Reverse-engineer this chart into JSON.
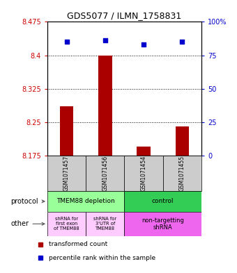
{
  "title": "GDS5077 / ILMN_1758831",
  "samples": [
    "GSM1071457",
    "GSM1071456",
    "GSM1071454",
    "GSM1071455"
  ],
  "bar_values": [
    8.285,
    8.4,
    8.195,
    8.24
  ],
  "bar_bottom": 8.175,
  "percentile_values": [
    85,
    86,
    83,
    85
  ],
  "ylim_left": [
    8.175,
    8.475
  ],
  "ylim_right": [
    0,
    100
  ],
  "yticks_left": [
    8.175,
    8.25,
    8.325,
    8.4,
    8.475
  ],
  "yticks_right": [
    0,
    25,
    50,
    75,
    100
  ],
  "ytick_labels_left": [
    "8.175",
    "8.25",
    "8.325",
    "8.4",
    "8.475"
  ],
  "ytick_labels_right": [
    "0",
    "25",
    "50",
    "75",
    "100%"
  ],
  "bar_color": "#aa0000",
  "dot_color": "#0000cc",
  "hline_values": [
    8.4,
    8.325,
    8.25
  ],
  "protocol_labels": [
    "TMEM88 depletion",
    "control"
  ],
  "protocol_color_left": "#99ff99",
  "protocol_color_right": "#33cc55",
  "other_labels": [
    "shRNA for\nfirst exon\nof TMEM88",
    "shRNA for\n3'UTR of\nTMEM88",
    "non-targetting\nshRNA"
  ],
  "other_color_left": "#ffccff",
  "other_color_right": "#ee66ee",
  "legend_bar_label": "transformed count",
  "legend_dot_label": "percentile rank within the sample",
  "left_labels": [
    "protocol",
    "other"
  ],
  "sample_box_color": "#cccccc"
}
